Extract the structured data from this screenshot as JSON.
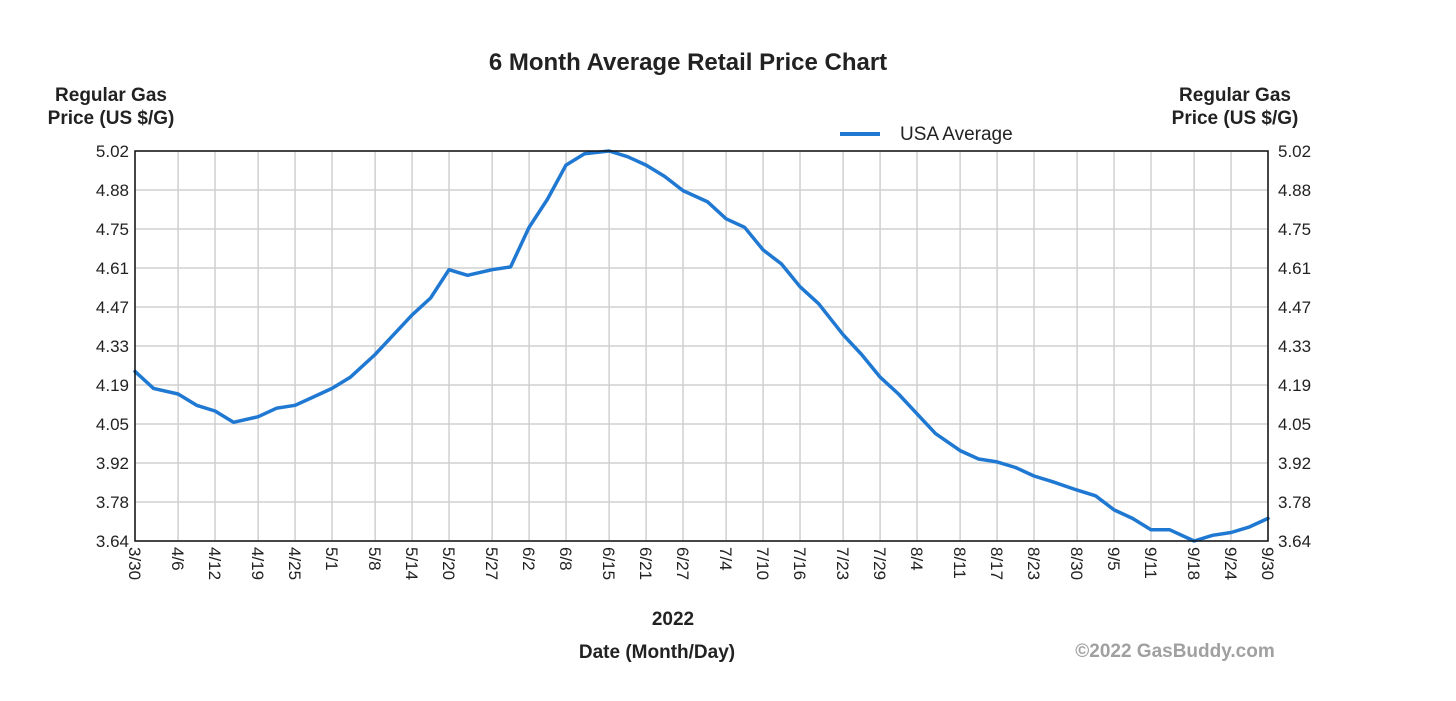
{
  "chart_data": {
    "type": "line",
    "title": "6 Month Average Retail Price Chart",
    "ylabel_left": [
      "Regular Gas",
      "Price (US $/G)"
    ],
    "ylabel_right": [
      "Regular Gas",
      "Price (US $/G)"
    ],
    "year_label": "2022",
    "xlabel": "Date (Month/Day)",
    "credit": "©2022 GasBuddy.com",
    "ylim": [
      3.64,
      5.02
    ],
    "yticks": [
      "5.02",
      "4.88",
      "4.75",
      "4.61",
      "4.47",
      "4.33",
      "4.19",
      "4.05",
      "3.92",
      "3.78",
      "3.64"
    ],
    "xticks": [
      "3/30",
      "4/6",
      "4/12",
      "4/19",
      "4/25",
      "5/1",
      "5/8",
      "5/14",
      "5/20",
      "5/27",
      "6/2",
      "6/8",
      "6/15",
      "6/21",
      "6/27",
      "7/4",
      "7/10",
      "7/16",
      "7/23",
      "7/29",
      "8/4",
      "8/11",
      "8/17",
      "8/23",
      "8/30",
      "9/5",
      "9/11",
      "9/18",
      "9/24",
      "9/30"
    ],
    "grid": true,
    "legend_position": "top-right",
    "series": [
      {
        "name": "USA Average",
        "color": "#1f78d1",
        "x": [
          "3/30",
          "4/2",
          "4/6",
          "4/9",
          "4/12",
          "4/15",
          "4/19",
          "4/22",
          "4/25",
          "4/28",
          "5/1",
          "5/4",
          "5/8",
          "5/11",
          "5/14",
          "5/17",
          "5/20",
          "5/23",
          "5/27",
          "5/30",
          "6/2",
          "6/5",
          "6/8",
          "6/11",
          "6/15",
          "6/18",
          "6/21",
          "6/24",
          "6/27",
          "7/1",
          "7/4",
          "7/7",
          "7/10",
          "7/13",
          "7/16",
          "7/19",
          "7/23",
          "7/26",
          "7/29",
          "8/1",
          "8/4",
          "8/7",
          "8/11",
          "8/14",
          "8/17",
          "8/20",
          "8/23",
          "8/26",
          "8/30",
          "9/2",
          "9/5",
          "9/8",
          "9/11",
          "9/14",
          "9/18",
          "9/21",
          "9/24",
          "9/27",
          "9/30"
        ],
        "values": [
          4.24,
          4.18,
          4.16,
          4.12,
          4.1,
          4.06,
          4.08,
          4.11,
          4.12,
          4.15,
          4.18,
          4.22,
          4.3,
          4.37,
          4.44,
          4.5,
          4.6,
          4.58,
          4.6,
          4.61,
          4.75,
          4.85,
          4.97,
          5.01,
          5.02,
          5.0,
          4.97,
          4.93,
          4.88,
          4.84,
          4.78,
          4.75,
          4.67,
          4.62,
          4.54,
          4.48,
          4.37,
          4.3,
          4.22,
          4.16,
          4.09,
          4.02,
          3.96,
          3.93,
          3.92,
          3.9,
          3.87,
          3.85,
          3.82,
          3.8,
          3.75,
          3.72,
          3.68,
          3.68,
          3.64,
          3.66,
          3.67,
          3.69,
          3.72
        ]
      }
    ]
  }
}
